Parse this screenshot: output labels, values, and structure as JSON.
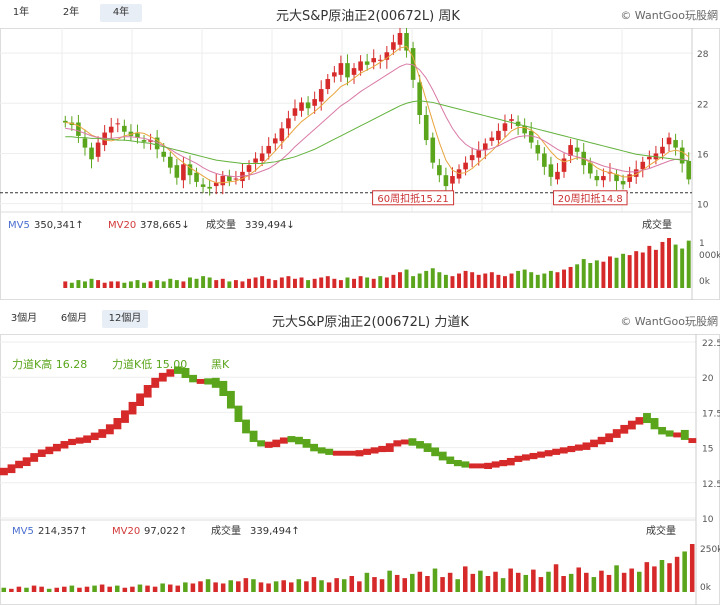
{
  "weekly": {
    "tabs": [
      {
        "label": "1年",
        "active": false
      },
      {
        "label": "2年",
        "active": false
      },
      {
        "label": "4年",
        "active": true
      }
    ],
    "title": "元大S&P原油正2(00672L) 周K",
    "credit": "© WantGoo玩股網",
    "yticks": [
      "28",
      "22",
      "16",
      "10"
    ],
    "ref_price": 11.3,
    "annotations": [
      {
        "text": "60周扣抵15.21",
        "index": 53
      },
      {
        "text": "20周扣抵14.8",
        "index": 80
      }
    ],
    "vol_legend": {
      "mv5": "MV5",
      "mv5_val": "350,341↑",
      "mv20": "MV20",
      "mv20_val": "378,665↓",
      "vol": "成交量",
      "vol_val": "339,494↓",
      "vol_right": "成交量"
    },
    "vol_ticks": [
      "1",
      "000k",
      "0k"
    ]
  },
  "force": {
    "tabs": [
      {
        "label": "3個月",
        "active": false
      },
      {
        "label": "6個月",
        "active": false
      },
      {
        "label": "12個月",
        "active": true
      }
    ],
    "title": "元大S&P原油正2(00672L) 力道K",
    "credit": "© WantGoo玩股網",
    "yticks": [
      "22.5",
      "20",
      "17.5",
      "15",
      "12.5",
      "10"
    ],
    "legend": {
      "high": "力道K高 16.28",
      "low": "力道K低 15.00",
      "state": "黑K"
    },
    "vol_legend": {
      "mv5": "MV5",
      "mv5_val": "214,357↑",
      "mv20": "MV20",
      "mv20_val": "97,022↑",
      "vol": "成交量",
      "vol_val": "339,494↑",
      "vol_right": "成交量"
    },
    "vol_ticks": [
      "250k",
      "0k"
    ]
  },
  "colors": {
    "up": "#d62a2a",
    "down": "#5aa51c",
    "mv5": "#4a6fd0",
    "mv20": "#d23a3a",
    "ma_green": "#62b23c",
    "ma_orange": "#e9a53f",
    "ma_pink": "#d97aa6"
  },
  "chart_data": [
    {
      "type": "candlestick",
      "title": "元大S&P原油正2(00672L) 周K",
      "ylim": [
        9,
        31
      ],
      "ylabel_ticks": [
        28,
        22,
        16,
        10
      ],
      "closes": [
        19.7,
        19.4,
        18.1,
        16.7,
        15.3,
        17.3,
        18.5,
        19.2,
        19.6,
        18.6,
        18.1,
        17.9,
        17.4,
        17.6,
        16.5,
        15.6,
        14.3,
        13.1,
        14.7,
        13.4,
        12.6,
        12.0,
        11.8,
        12.5,
        13.3,
        12.7,
        13.0,
        13.8,
        14.6,
        15.4,
        16.0,
        16.9,
        17.8,
        19.0,
        20.2,
        21.4,
        22.1,
        21.4,
        22.5,
        23.7,
        24.9,
        25.7,
        26.8,
        25.1,
        26.2,
        27.0,
        26.6,
        27.4,
        27.2,
        28.1,
        29.3,
        30.4,
        28.3,
        24.8,
        20.6,
        17.6,
        14.9,
        13.4,
        12.1,
        13.3,
        14.1,
        14.9,
        15.8,
        16.4,
        17.2,
        17.9,
        18.7,
        19.6,
        20.1,
        19.3,
        18.4,
        17.3,
        16.0,
        14.4,
        13.2,
        13.8,
        15.4,
        17.0,
        16.2,
        14.6,
        13.6,
        12.8,
        13.3,
        13.8,
        12.7,
        12.3,
        13.5,
        14.1,
        15.0,
        15.6,
        16.0,
        16.8,
        17.9,
        16.7,
        14.8,
        12.9
      ],
      "volume": [
        5,
        4,
        6,
        5,
        7,
        6,
        4,
        5,
        5,
        4,
        5,
        6,
        4,
        5,
        6,
        5,
        7,
        6,
        5,
        8,
        7,
        9,
        8,
        6,
        7,
        5,
        6,
        5,
        7,
        8,
        9,
        7,
        6,
        8,
        9,
        7,
        8,
        6,
        7,
        8,
        9,
        7,
        6,
        8,
        7,
        9,
        8,
        7,
        9,
        8,
        10,
        12,
        14,
        9,
        11,
        13,
        15,
        12,
        10,
        9,
        11,
        13,
        12,
        10,
        11,
        12,
        10,
        9,
        11,
        13,
        14,
        12,
        10,
        11,
        13,
        12,
        14,
        16,
        18,
        22,
        19,
        21,
        20,
        24,
        23,
        26,
        25,
        28,
        27,
        32,
        29,
        35,
        38,
        33,
        30,
        36
      ],
      "series": [
        {
          "name": "MA-A",
          "values": [
            19.7,
            19.6,
            19.3,
            18.8,
            18.2,
            17.9,
            17.6,
            17.5,
            17.7,
            18.1,
            18.3,
            18.5,
            18.4,
            18.0,
            17.6,
            17.0,
            16.3,
            15.5,
            14.9,
            14.3,
            13.8,
            13.3,
            12.8,
            12.5,
            12.5,
            12.6,
            12.7,
            13.0,
            13.4,
            14.0,
            14.7,
            15.5,
            16.3,
            17.2,
            18.1,
            19.0,
            19.8,
            20.4,
            21.0,
            21.7,
            22.5,
            23.2,
            24.0,
            24.4,
            25.0,
            25.6,
            26.0,
            26.4,
            26.9,
            27.4,
            28.0,
            28.6,
            28.8,
            27.5,
            25.0,
            22.4,
            19.8,
            17.3,
            15.2,
            14.0,
            13.6,
            13.7,
            14.2,
            14.9,
            15.6,
            16.3,
            17.1,
            17.9,
            18.7,
            19.1,
            19.1,
            18.8,
            18.2,
            17.2,
            16.2,
            15.4,
            15.0,
            15.2,
            15.5,
            15.4,
            14.9,
            14.3,
            13.9,
            13.7,
            13.5,
            13.2,
            13.2,
            13.5,
            14.0,
            14.6,
            15.1,
            15.6,
            16.2,
            16.4,
            16.2,
            15.6
          ]
        },
        {
          "name": "MA-B",
          "values": [
            19.0,
            18.9,
            18.7,
            18.4,
            18.1,
            17.9,
            17.8,
            17.8,
            17.9,
            18.0,
            18.0,
            17.9,
            17.8,
            17.6,
            17.3,
            16.9,
            16.5,
            16.0,
            15.6,
            15.2,
            14.8,
            14.3,
            13.9,
            13.6,
            13.4,
            13.3,
            13.2,
            13.3,
            13.4,
            13.6,
            13.9,
            14.2,
            14.7,
            15.3,
            16.0,
            16.8,
            17.5,
            18.2,
            18.9,
            19.6,
            20.3,
            21.0,
            21.7,
            22.2,
            22.8,
            23.4,
            23.9,
            24.4,
            24.9,
            25.4,
            25.9,
            26.4,
            26.7,
            26.6,
            26.0,
            25.0,
            23.6,
            22.0,
            20.4,
            19.0,
            17.9,
            17.1,
            16.6,
            16.4,
            16.4,
            16.6,
            16.9,
            17.3,
            17.7,
            18.0,
            18.1,
            18.1,
            17.9,
            17.5,
            17.0,
            16.5,
            16.1,
            15.8,
            15.6,
            15.4,
            15.1,
            14.8,
            14.5,
            14.3,
            14.1,
            13.9,
            13.8,
            13.8,
            14.0,
            14.2,
            14.5,
            14.8,
            15.1,
            15.3,
            15.3,
            15.1
          ]
        },
        {
          "name": "MA-C",
          "values": [
            18.0,
            18.0,
            17.9,
            17.9,
            17.8,
            17.8,
            17.7,
            17.7,
            17.6,
            17.6,
            17.5,
            17.4,
            17.3,
            17.2,
            17.0,
            16.8,
            16.6,
            16.4,
            16.2,
            16.0,
            15.8,
            15.6,
            15.4,
            15.2,
            15.1,
            15.0,
            14.9,
            14.8,
            14.8,
            14.8,
            14.8,
            14.9,
            15.0,
            15.2,
            15.4,
            15.6,
            15.9,
            16.2,
            16.5,
            16.9,
            17.3,
            17.7,
            18.1,
            18.5,
            18.9,
            19.3,
            19.7,
            20.1,
            20.5,
            20.9,
            21.3,
            21.7,
            22.0,
            22.2,
            22.3,
            22.2,
            22.1,
            21.9,
            21.7,
            21.5,
            21.3,
            21.1,
            20.9,
            20.7,
            20.5,
            20.3,
            20.1,
            19.9,
            19.7,
            19.5,
            19.3,
            19.1,
            18.9,
            18.7,
            18.5,
            18.3,
            18.1,
            17.9,
            17.7,
            17.5,
            17.3,
            17.1,
            16.9,
            16.7,
            16.5,
            16.3,
            16.1,
            15.9,
            15.8,
            15.7,
            15.6,
            15.5,
            15.4,
            15.3,
            15.2,
            15.1
          ]
        }
      ]
    },
    {
      "type": "area",
      "title": "元大S&P原油正2(00672L) 力道K",
      "ylim": [
        10,
        22.5
      ],
      "ylabel_ticks": [
        22.5,
        20,
        17.5,
        15,
        12.5,
        10
      ],
      "values": [
        13.3,
        13.5,
        13.8,
        14.0,
        14.3,
        14.6,
        14.8,
        15.0,
        15.2,
        15.4,
        15.5,
        15.6,
        15.8,
        16.0,
        16.3,
        16.7,
        17.2,
        17.8,
        18.4,
        19.0,
        19.6,
        20.0,
        20.3,
        20.5,
        20.3,
        19.9,
        19.7,
        19.7,
        19.6,
        19.2,
        18.4,
        17.4,
        16.5,
        15.8,
        15.3,
        15.2,
        15.3,
        15.5,
        15.6,
        15.5,
        15.3,
        15.0,
        14.8,
        14.7,
        14.6,
        14.6,
        14.6,
        14.6,
        14.7,
        14.8,
        14.9,
        15.0,
        15.3,
        15.4,
        15.4,
        15.2,
        15.0,
        14.7,
        14.4,
        14.1,
        13.9,
        13.8,
        13.7,
        13.7,
        13.7,
        13.8,
        13.9,
        14.0,
        14.2,
        14.3,
        14.4,
        14.5,
        14.6,
        14.7,
        14.8,
        14.9,
        15.0,
        15.1,
        15.3,
        15.5,
        15.7,
        16.0,
        16.3,
        16.6,
        16.9,
        17.1,
        16.7,
        16.2,
        16.0,
        15.9,
        15.9,
        15.5
      ],
      "volume": [
        4,
        3,
        5,
        4,
        6,
        5,
        3,
        4,
        5,
        6,
        4,
        5,
        6,
        7,
        5,
        6,
        4,
        5,
        7,
        6,
        5,
        8,
        7,
        6,
        9,
        8,
        10,
        12,
        9,
        8,
        11,
        10,
        13,
        12,
        9,
        8,
        10,
        11,
        9,
        12,
        10,
        14,
        11,
        9,
        13,
        12,
        15,
        10,
        18,
        14,
        12,
        20,
        16,
        13,
        17,
        19,
        15,
        22,
        14,
        18,
        12,
        24,
        17,
        20,
        15,
        19,
        13,
        22,
        18,
        16,
        21,
        14,
        19,
        26,
        15,
        17,
        23,
        18,
        14,
        20,
        16,
        25,
        18,
        22,
        19,
        28,
        24,
        30,
        27,
        33,
        38,
        45
      ]
    }
  ]
}
